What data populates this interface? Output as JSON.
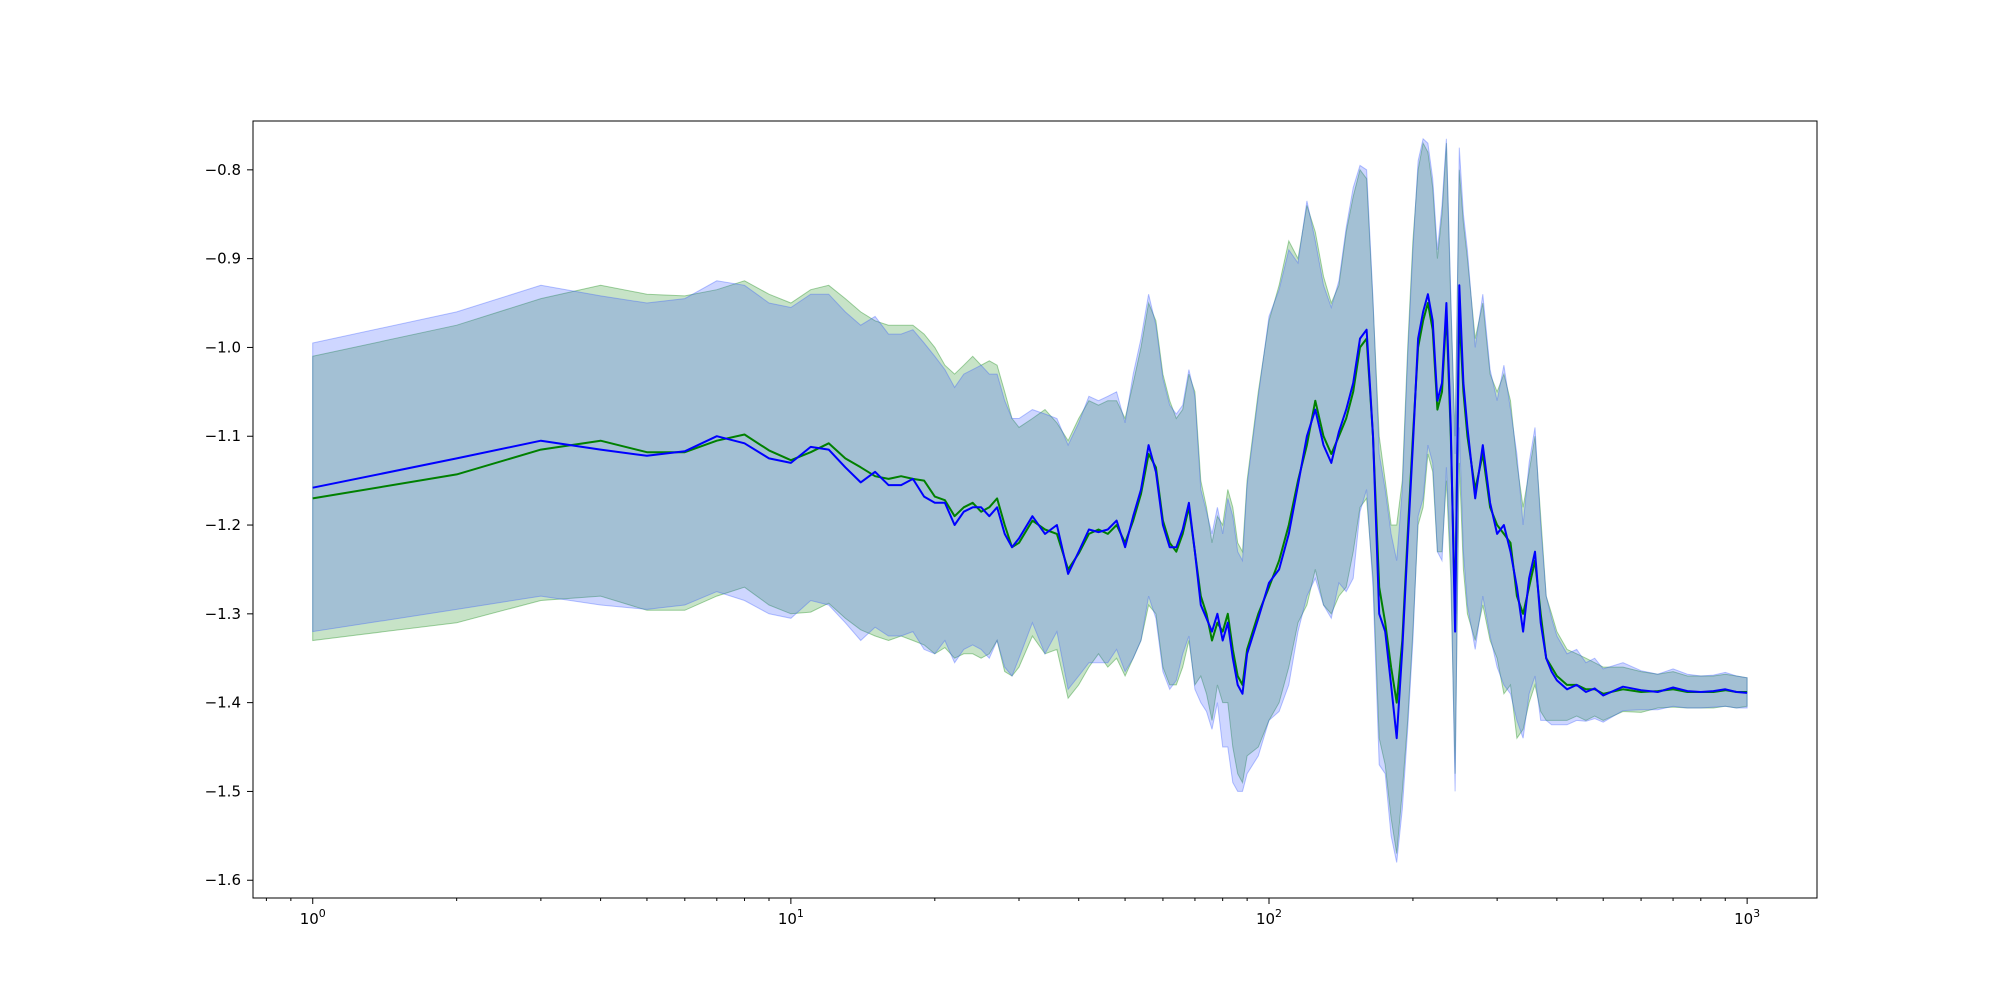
{
  "chart_data": {
    "type": "line",
    "xscale": "log",
    "xlim": [
      0.75,
      1400
    ],
    "ylim": [
      -1.62,
      -0.745
    ],
    "title": "",
    "xlabel": "",
    "ylabel": "",
    "grid": false,
    "x_ticks": [
      {
        "value": 1,
        "base": "10",
        "exp": "0"
      },
      {
        "value": 10,
        "base": "10",
        "exp": "1"
      },
      {
        "value": 100,
        "base": "10",
        "exp": "2"
      },
      {
        "value": 1000,
        "base": "10",
        "exp": "3"
      }
    ],
    "y_ticks": [
      {
        "value": -0.8,
        "label": "−0.8"
      },
      {
        "value": -0.9,
        "label": "−0.9"
      },
      {
        "value": -1.0,
        "label": "−1.0"
      },
      {
        "value": -1.1,
        "label": "−1.1"
      },
      {
        "value": -1.2,
        "label": "−1.2"
      },
      {
        "value": -1.3,
        "label": "−1.3"
      },
      {
        "value": -1.4,
        "label": "−1.4"
      },
      {
        "value": -1.5,
        "label": "−1.5"
      },
      {
        "value": -1.6,
        "label": "−1.6"
      }
    ],
    "series": [
      {
        "color": "#008000",
        "band_color": "#008000",
        "band_opacity": 0.22,
        "x": [
          1,
          2,
          3,
          4,
          5,
          6,
          7,
          8,
          9,
          10,
          11,
          12,
          13,
          14,
          15,
          16,
          17,
          18,
          19,
          20,
          21,
          22,
          23,
          24,
          25,
          26,
          27,
          28,
          29,
          30,
          32,
          34,
          36,
          38,
          40,
          42,
          44,
          46,
          48,
          50,
          52,
          54,
          56,
          58,
          60,
          62,
          64,
          66,
          68,
          70,
          72,
          74,
          76,
          78,
          80,
          82,
          84,
          86,
          88,
          90,
          95,
          100,
          105,
          110,
          115,
          120,
          125,
          130,
          135,
          140,
          145,
          150,
          155,
          160,
          165,
          170,
          175,
          180,
          185,
          190,
          195,
          200,
          205,
          210,
          215,
          220,
          225,
          230,
          235,
          240,
          245,
          250,
          255,
          260,
          270,
          280,
          290,
          300,
          310,
          320,
          330,
          340,
          350,
          360,
          370,
          380,
          390,
          400,
          420,
          440,
          460,
          480,
          500,
          550,
          600,
          650,
          700,
          750,
          800,
          850,
          900,
          950,
          1000
        ],
        "y": [
          -1.17,
          -1.143,
          -1.115,
          -1.105,
          -1.118,
          -1.118,
          -1.105,
          -1.098,
          -1.116,
          -1.127,
          -1.118,
          -1.108,
          -1.125,
          -1.135,
          -1.145,
          -1.148,
          -1.145,
          -1.148,
          -1.15,
          -1.168,
          -1.172,
          -1.19,
          -1.18,
          -1.175,
          -1.185,
          -1.18,
          -1.17,
          -1.2,
          -1.225,
          -1.22,
          -1.195,
          -1.205,
          -1.21,
          -1.25,
          -1.232,
          -1.21,
          -1.205,
          -1.21,
          -1.2,
          -1.22,
          -1.195,
          -1.165,
          -1.12,
          -1.135,
          -1.195,
          -1.22,
          -1.23,
          -1.21,
          -1.18,
          -1.23,
          -1.28,
          -1.3,
          -1.33,
          -1.31,
          -1.32,
          -1.3,
          -1.34,
          -1.37,
          -1.38,
          -1.34,
          -1.3,
          -1.27,
          -1.24,
          -1.2,
          -1.15,
          -1.11,
          -1.06,
          -1.1,
          -1.12,
          -1.1,
          -1.08,
          -1.05,
          -1.0,
          -0.99,
          -1.1,
          -1.27,
          -1.31,
          -1.36,
          -1.4,
          -1.33,
          -1.21,
          -1.1,
          -1.0,
          -0.97,
          -0.95,
          -0.98,
          -1.07,
          -1.05,
          -0.96,
          -1.1,
          -1.3,
          -0.96,
          -1.05,
          -1.1,
          -1.16,
          -1.12,
          -1.18,
          -1.2,
          -1.21,
          -1.22,
          -1.28,
          -1.3,
          -1.27,
          -1.24,
          -1.3,
          -1.35,
          -1.36,
          -1.37,
          -1.38,
          -1.38,
          -1.385,
          -1.385,
          -1.39,
          -1.385,
          -1.388,
          -1.387,
          -1.385,
          -1.388,
          -1.388,
          -1.388,
          -1.386,
          -1.388,
          -1.388
        ],
        "upper": [
          -1.01,
          -0.975,
          -0.945,
          -0.93,
          -0.94,
          -0.942,
          -0.935,
          -0.925,
          -0.94,
          -0.95,
          -0.935,
          -0.93,
          -0.945,
          -0.96,
          -0.97,
          -0.975,
          -0.975,
          -0.975,
          -0.985,
          -1.0,
          -1.02,
          -1.03,
          -1.02,
          -1.01,
          -1.02,
          -1.015,
          -1.02,
          -1.05,
          -1.08,
          -1.09,
          -1.08,
          -1.07,
          -1.085,
          -1.105,
          -1.08,
          -1.06,
          -1.065,
          -1.06,
          -1.06,
          -1.08,
          -1.04,
          -1.0,
          -0.95,
          -0.97,
          -1.03,
          -1.06,
          -1.08,
          -1.07,
          -1.03,
          -1.05,
          -1.15,
          -1.18,
          -1.22,
          -1.19,
          -1.2,
          -1.16,
          -1.18,
          -1.22,
          -1.23,
          -1.15,
          -1.05,
          -0.97,
          -0.93,
          -0.88,
          -0.9,
          -0.84,
          -0.87,
          -0.92,
          -0.95,
          -0.93,
          -0.87,
          -0.83,
          -0.8,
          -0.81,
          -0.95,
          -1.1,
          -1.15,
          -1.2,
          -1.2,
          -1.15,
          -1.0,
          -0.88,
          -0.8,
          -0.77,
          -0.78,
          -0.82,
          -0.9,
          -0.85,
          -0.77,
          -0.95,
          -1.1,
          -0.8,
          -0.86,
          -0.9,
          -0.99,
          -0.95,
          -1.03,
          -1.05,
          -1.03,
          -1.06,
          -1.13,
          -1.18,
          -1.14,
          -1.1,
          -1.19,
          -1.28,
          -1.3,
          -1.32,
          -1.34,
          -1.345,
          -1.35,
          -1.355,
          -1.36,
          -1.36,
          -1.365,
          -1.368,
          -1.365,
          -1.37,
          -1.37,
          -1.37,
          -1.368,
          -1.37,
          -1.372
        ],
        "lower": [
          -1.33,
          -1.31,
          -1.285,
          -1.28,
          -1.296,
          -1.296,
          -1.28,
          -1.27,
          -1.29,
          -1.3,
          -1.298,
          -1.288,
          -1.305,
          -1.318,
          -1.325,
          -1.33,
          -1.325,
          -1.33,
          -1.335,
          -1.345,
          -1.338,
          -1.35,
          -1.345,
          -1.345,
          -1.35,
          -1.345,
          -1.33,
          -1.365,
          -1.37,
          -1.36,
          -1.325,
          -1.345,
          -1.34,
          -1.395,
          -1.38,
          -1.36,
          -1.345,
          -1.36,
          -1.35,
          -1.37,
          -1.35,
          -1.33,
          -1.29,
          -1.3,
          -1.36,
          -1.38,
          -1.38,
          -1.36,
          -1.33,
          -1.38,
          -1.37,
          -1.39,
          -1.42,
          -1.38,
          -1.4,
          -1.4,
          -1.45,
          -1.48,
          -1.49,
          -1.46,
          -1.45,
          -1.42,
          -1.4,
          -1.36,
          -1.31,
          -1.29,
          -1.25,
          -1.29,
          -1.3,
          -1.28,
          -1.27,
          -1.23,
          -1.18,
          -1.17,
          -1.26,
          -1.44,
          -1.47,
          -1.53,
          -1.57,
          -1.5,
          -1.42,
          -1.32,
          -1.2,
          -1.18,
          -1.12,
          -1.14,
          -1.23,
          -1.23,
          -1.15,
          -1.26,
          -1.48,
          -1.13,
          -1.25,
          -1.3,
          -1.33,
          -1.29,
          -1.33,
          -1.35,
          -1.39,
          -1.38,
          -1.44,
          -1.43,
          -1.4,
          -1.38,
          -1.41,
          -1.42,
          -1.42,
          -1.42,
          -1.42,
          -1.415,
          -1.42,
          -1.415,
          -1.42,
          -1.41,
          -1.411,
          -1.406,
          -1.405,
          -1.406,
          -1.406,
          -1.406,
          -1.404,
          -1.406,
          -1.404
        ]
      },
      {
        "color": "#0000ff",
        "band_color": "#3355ff",
        "band_opacity": 0.24,
        "x": [
          1,
          2,
          3,
          4,
          5,
          6,
          7,
          8,
          9,
          10,
          11,
          12,
          13,
          14,
          15,
          16,
          17,
          18,
          19,
          20,
          21,
          22,
          23,
          24,
          25,
          26,
          27,
          28,
          29,
          30,
          32,
          34,
          36,
          38,
          40,
          42,
          44,
          46,
          48,
          50,
          52,
          54,
          56,
          58,
          60,
          62,
          64,
          66,
          68,
          70,
          72,
          74,
          76,
          78,
          80,
          82,
          84,
          86,
          88,
          90,
          95,
          100,
          105,
          110,
          115,
          120,
          125,
          130,
          135,
          140,
          145,
          150,
          155,
          160,
          165,
          170,
          175,
          180,
          185,
          190,
          195,
          200,
          205,
          210,
          215,
          220,
          225,
          230,
          235,
          240,
          245,
          250,
          255,
          260,
          270,
          280,
          290,
          300,
          310,
          320,
          330,
          340,
          350,
          360,
          370,
          380,
          390,
          400,
          420,
          440,
          460,
          480,
          500,
          550,
          600,
          650,
          700,
          750,
          800,
          850,
          900,
          950,
          1000
        ],
        "y": [
          -1.158,
          -1.125,
          -1.105,
          -1.115,
          -1.122,
          -1.117,
          -1.1,
          -1.108,
          -1.125,
          -1.13,
          -1.112,
          -1.115,
          -1.135,
          -1.152,
          -1.14,
          -1.155,
          -1.155,
          -1.148,
          -1.168,
          -1.175,
          -1.175,
          -1.2,
          -1.185,
          -1.18,
          -1.18,
          -1.19,
          -1.18,
          -1.21,
          -1.225,
          -1.215,
          -1.19,
          -1.21,
          -1.2,
          -1.255,
          -1.23,
          -1.205,
          -1.208,
          -1.205,
          -1.195,
          -1.225,
          -1.19,
          -1.16,
          -1.11,
          -1.14,
          -1.2,
          -1.225,
          -1.225,
          -1.205,
          -1.175,
          -1.23,
          -1.29,
          -1.305,
          -1.32,
          -1.3,
          -1.33,
          -1.31,
          -1.35,
          -1.38,
          -1.39,
          -1.345,
          -1.305,
          -1.265,
          -1.25,
          -1.21,
          -1.155,
          -1.1,
          -1.07,
          -1.11,
          -1.13,
          -1.095,
          -1.07,
          -1.04,
          -0.99,
          -0.98,
          -1.1,
          -1.3,
          -1.32,
          -1.38,
          -1.44,
          -1.34,
          -1.22,
          -1.11,
          -0.99,
          -0.96,
          -0.94,
          -0.97,
          -1.06,
          -1.04,
          -0.95,
          -1.09,
          -1.32,
          -0.93,
          -1.04,
          -1.09,
          -1.17,
          -1.11,
          -1.175,
          -1.21,
          -1.2,
          -1.23,
          -1.27,
          -1.32,
          -1.26,
          -1.23,
          -1.31,
          -1.35,
          -1.365,
          -1.375,
          -1.385,
          -1.38,
          -1.388,
          -1.384,
          -1.392,
          -1.382,
          -1.386,
          -1.388,
          -1.383,
          -1.387,
          -1.388,
          -1.387,
          -1.385,
          -1.388,
          -1.389
        ],
        "upper": [
          -0.995,
          -0.96,
          -0.93,
          -0.942,
          -0.95,
          -0.945,
          -0.925,
          -0.93,
          -0.95,
          -0.955,
          -0.94,
          -0.94,
          -0.96,
          -0.975,
          -0.965,
          -0.985,
          -0.985,
          -0.98,
          -0.995,
          -1.01,
          -1.025,
          -1.045,
          -1.03,
          -1.025,
          -1.02,
          -1.03,
          -1.03,
          -1.06,
          -1.08,
          -1.08,
          -1.07,
          -1.075,
          -1.08,
          -1.11,
          -1.085,
          -1.055,
          -1.06,
          -1.055,
          -1.05,
          -1.085,
          -1.03,
          -0.99,
          -0.94,
          -0.975,
          -1.035,
          -1.065,
          -1.075,
          -1.065,
          -1.025,
          -1.055,
          -1.16,
          -1.185,
          -1.21,
          -1.18,
          -1.21,
          -1.17,
          -1.19,
          -1.23,
          -1.24,
          -1.155,
          -1.055,
          -0.965,
          -0.935,
          -0.89,
          -0.905,
          -0.835,
          -0.88,
          -0.93,
          -0.955,
          -0.925,
          -0.865,
          -0.82,
          -0.795,
          -0.8,
          -0.945,
          -1.12,
          -1.16,
          -1.21,
          -1.24,
          -1.16,
          -1.01,
          -0.89,
          -0.79,
          -0.765,
          -0.77,
          -0.81,
          -0.89,
          -0.84,
          -0.765,
          -0.94,
          -1.12,
          -0.775,
          -0.85,
          -0.89,
          -1.0,
          -0.94,
          -1.025,
          -1.06,
          -1.02,
          -1.07,
          -1.12,
          -1.2,
          -1.13,
          -1.09,
          -1.2,
          -1.28,
          -1.305,
          -1.325,
          -1.345,
          -1.34,
          -1.355,
          -1.35,
          -1.362,
          -1.355,
          -1.364,
          -1.368,
          -1.362,
          -1.368,
          -1.37,
          -1.369,
          -1.366,
          -1.37,
          -1.372
        ],
        "lower": [
          -1.32,
          -1.295,
          -1.28,
          -1.29,
          -1.295,
          -1.29,
          -1.275,
          -1.285,
          -1.3,
          -1.305,
          -1.285,
          -1.29,
          -1.31,
          -1.33,
          -1.315,
          -1.325,
          -1.325,
          -1.32,
          -1.34,
          -1.345,
          -1.33,
          -1.355,
          -1.34,
          -1.335,
          -1.34,
          -1.35,
          -1.33,
          -1.36,
          -1.37,
          -1.35,
          -1.31,
          -1.345,
          -1.32,
          -1.385,
          -1.37,
          -1.355,
          -1.355,
          -1.355,
          -1.34,
          -1.365,
          -1.35,
          -1.33,
          -1.28,
          -1.305,
          -1.365,
          -1.385,
          -1.375,
          -1.345,
          -1.325,
          -1.385,
          -1.4,
          -1.41,
          -1.43,
          -1.4,
          -1.45,
          -1.45,
          -1.49,
          -1.5,
          -1.5,
          -1.48,
          -1.46,
          -1.42,
          -1.41,
          -1.38,
          -1.32,
          -1.28,
          -1.26,
          -1.29,
          -1.305,
          -1.265,
          -1.275,
          -1.26,
          -1.185,
          -1.16,
          -1.27,
          -1.47,
          -1.48,
          -1.55,
          -1.58,
          -1.52,
          -1.43,
          -1.33,
          -1.19,
          -1.17,
          -1.11,
          -1.13,
          -1.23,
          -1.24,
          -1.135,
          -1.24,
          -1.5,
          -1.09,
          -1.23,
          -1.29,
          -1.34,
          -1.28,
          -1.325,
          -1.36,
          -1.38,
          -1.39,
          -1.42,
          -1.44,
          -1.39,
          -1.37,
          -1.42,
          -1.42,
          -1.425,
          -1.425,
          -1.425,
          -1.42,
          -1.421,
          -1.418,
          -1.422,
          -1.409,
          -1.408,
          -1.408,
          -1.404,
          -1.406,
          -1.406,
          -1.405,
          -1.404,
          -1.406,
          -1.406
        ]
      }
    ]
  }
}
